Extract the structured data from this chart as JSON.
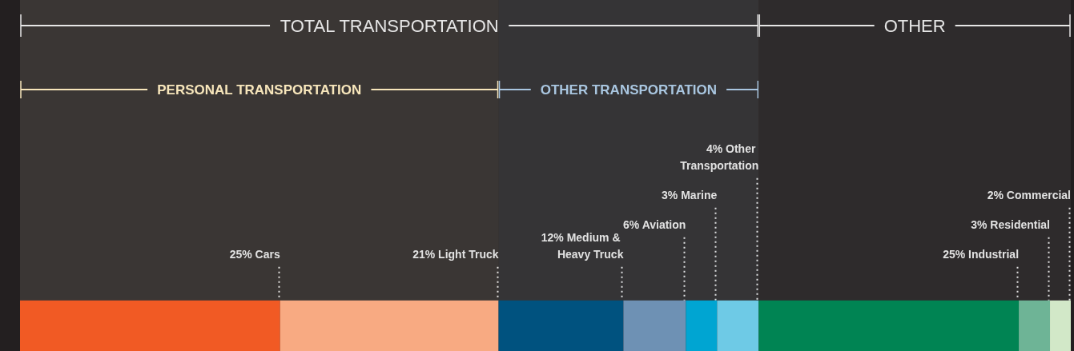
{
  "chart_data": {
    "type": "bar",
    "orientation": "horizontal",
    "stacked": true,
    "categories": [
      null
    ],
    "xlim": [
      0,
      101
    ],
    "series": [
      {
        "color": "#f15a24",
        "values": [
          25
        ],
        "value_labels": [
          "25% Cars"
        ]
      },
      {
        "color": "#f8aa82",
        "values": [
          21
        ],
        "value_labels": [
          "21% Light Truck"
        ]
      },
      {
        "color": "#00527f",
        "values": [
          12
        ],
        "value_labels": [
          "12% Medium & Heavy Truck"
        ]
      },
      {
        "color": "#6e91b4",
        "values": [
          6
        ],
        "value_labels": [
          "6% Aviation"
        ]
      },
      {
        "color": "#00a5d2",
        "values": [
          3
        ],
        "value_labels": [
          "3% Marine"
        ]
      },
      {
        "color": "#6ecae6",
        "values": [
          4
        ],
        "value_labels": [
          "4% Other Transportation"
        ]
      },
      {
        "color": "#008453",
        "values": [
          25
        ],
        "value_labels": [
          "25% Industrial"
        ]
      },
      {
        "color": "#6eb496",
        "values": [
          3
        ],
        "value_labels": [
          "3% Residential"
        ]
      },
      {
        "color": "#d2e8c8",
        "values": [
          2
        ],
        "value_labels": [
          "2% Commercial"
        ]
      }
    ],
    "bands": [
      {
        "axis": "x",
        "from": 0,
        "to": 71,
        "label": "TOTAL TRANSPORTATION",
        "color": "#e6e6e6"
      },
      {
        "axis": "x",
        "from": 71,
        "to": 101,
        "label": "OTHER",
        "color": "#e6e6e6"
      },
      {
        "axis": "x",
        "from": 0,
        "to": 46,
        "label": "PERSONAL TRANSPORTATION",
        "color": "#f7e6bb"
      },
      {
        "axis": "x",
        "from": 46,
        "to": 71,
        "label": "OTHER TRANSPORTATION",
        "color": "#a9c6e0"
      }
    ]
  }
}
